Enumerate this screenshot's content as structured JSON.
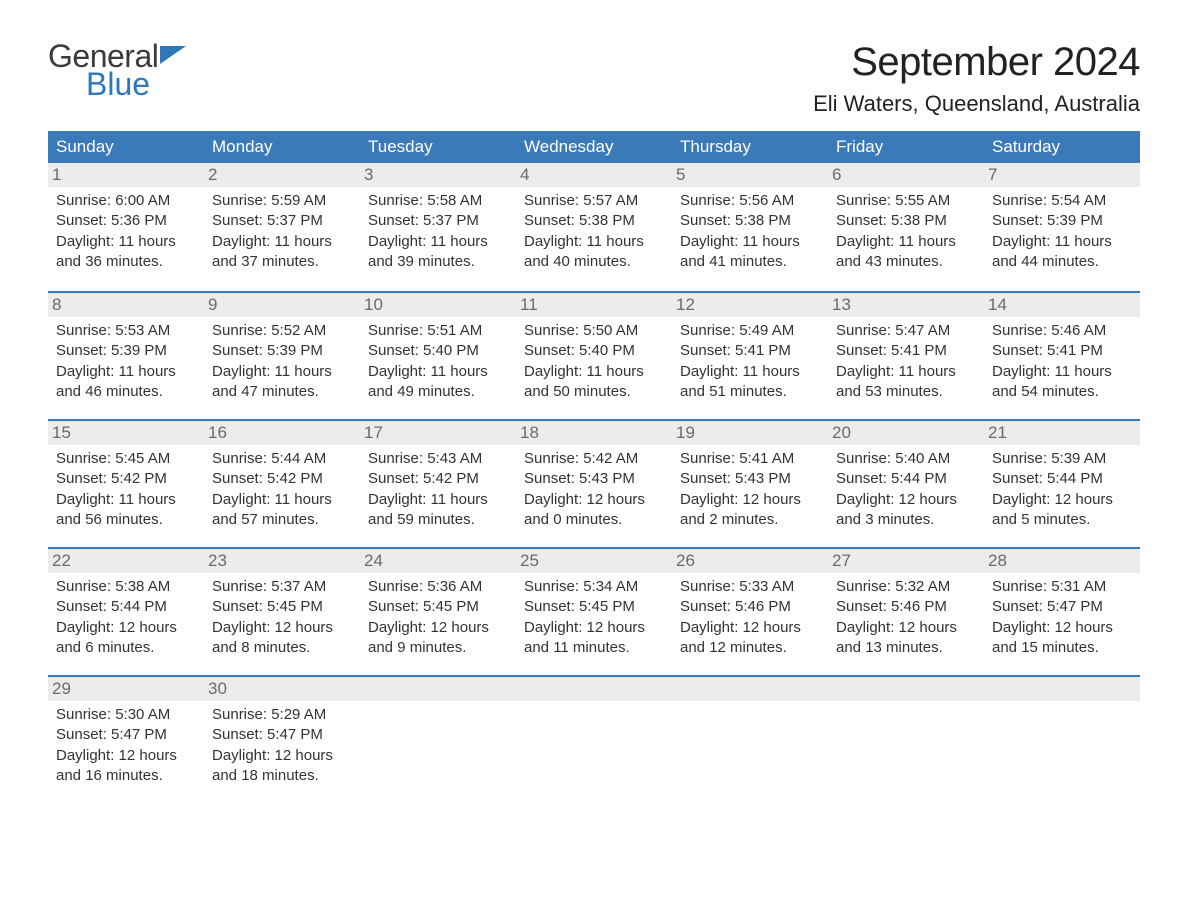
{
  "logo": {
    "part1": "General",
    "part2": "Blue"
  },
  "title": "September 2024",
  "location": "Eli Waters, Queensland, Australia",
  "colors": {
    "header_bg": "#3b7ab8",
    "header_text": "#ffffff",
    "daynum_bg": "#ececec",
    "daynum_text": "#6a6a6a",
    "body_text": "#333333",
    "border": "#3b7ab8",
    "logo_gray": "#3b3b3b",
    "logo_blue": "#2e77b8"
  },
  "weekdays": [
    "Sunday",
    "Monday",
    "Tuesday",
    "Wednesday",
    "Thursday",
    "Friday",
    "Saturday"
  ],
  "weeks": [
    [
      {
        "n": "1",
        "sr": "Sunrise: 6:00 AM",
        "ss": "Sunset: 5:36 PM",
        "d1": "Daylight: 11 hours",
        "d2": "and 36 minutes."
      },
      {
        "n": "2",
        "sr": "Sunrise: 5:59 AM",
        "ss": "Sunset: 5:37 PM",
        "d1": "Daylight: 11 hours",
        "d2": "and 37 minutes."
      },
      {
        "n": "3",
        "sr": "Sunrise: 5:58 AM",
        "ss": "Sunset: 5:37 PM",
        "d1": "Daylight: 11 hours",
        "d2": "and 39 minutes."
      },
      {
        "n": "4",
        "sr": "Sunrise: 5:57 AM",
        "ss": "Sunset: 5:38 PM",
        "d1": "Daylight: 11 hours",
        "d2": "and 40 minutes."
      },
      {
        "n": "5",
        "sr": "Sunrise: 5:56 AM",
        "ss": "Sunset: 5:38 PM",
        "d1": "Daylight: 11 hours",
        "d2": "and 41 minutes."
      },
      {
        "n": "6",
        "sr": "Sunrise: 5:55 AM",
        "ss": "Sunset: 5:38 PM",
        "d1": "Daylight: 11 hours",
        "d2": "and 43 minutes."
      },
      {
        "n": "7",
        "sr": "Sunrise: 5:54 AM",
        "ss": "Sunset: 5:39 PM",
        "d1": "Daylight: 11 hours",
        "d2": "and 44 minutes."
      }
    ],
    [
      {
        "n": "8",
        "sr": "Sunrise: 5:53 AM",
        "ss": "Sunset: 5:39 PM",
        "d1": "Daylight: 11 hours",
        "d2": "and 46 minutes."
      },
      {
        "n": "9",
        "sr": "Sunrise: 5:52 AM",
        "ss": "Sunset: 5:39 PM",
        "d1": "Daylight: 11 hours",
        "d2": "and 47 minutes."
      },
      {
        "n": "10",
        "sr": "Sunrise: 5:51 AM",
        "ss": "Sunset: 5:40 PM",
        "d1": "Daylight: 11 hours",
        "d2": "and 49 minutes."
      },
      {
        "n": "11",
        "sr": "Sunrise: 5:50 AM",
        "ss": "Sunset: 5:40 PM",
        "d1": "Daylight: 11 hours",
        "d2": "and 50 minutes."
      },
      {
        "n": "12",
        "sr": "Sunrise: 5:49 AM",
        "ss": "Sunset: 5:41 PM",
        "d1": "Daylight: 11 hours",
        "d2": "and 51 minutes."
      },
      {
        "n": "13",
        "sr": "Sunrise: 5:47 AM",
        "ss": "Sunset: 5:41 PM",
        "d1": "Daylight: 11 hours",
        "d2": "and 53 minutes."
      },
      {
        "n": "14",
        "sr": "Sunrise: 5:46 AM",
        "ss": "Sunset: 5:41 PM",
        "d1": "Daylight: 11 hours",
        "d2": "and 54 minutes."
      }
    ],
    [
      {
        "n": "15",
        "sr": "Sunrise: 5:45 AM",
        "ss": "Sunset: 5:42 PM",
        "d1": "Daylight: 11 hours",
        "d2": "and 56 minutes."
      },
      {
        "n": "16",
        "sr": "Sunrise: 5:44 AM",
        "ss": "Sunset: 5:42 PM",
        "d1": "Daylight: 11 hours",
        "d2": "and 57 minutes."
      },
      {
        "n": "17",
        "sr": "Sunrise: 5:43 AM",
        "ss": "Sunset: 5:42 PM",
        "d1": "Daylight: 11 hours",
        "d2": "and 59 minutes."
      },
      {
        "n": "18",
        "sr": "Sunrise: 5:42 AM",
        "ss": "Sunset: 5:43 PM",
        "d1": "Daylight: 12 hours",
        "d2": "and 0 minutes."
      },
      {
        "n": "19",
        "sr": "Sunrise: 5:41 AM",
        "ss": "Sunset: 5:43 PM",
        "d1": "Daylight: 12 hours",
        "d2": "and 2 minutes."
      },
      {
        "n": "20",
        "sr": "Sunrise: 5:40 AM",
        "ss": "Sunset: 5:44 PM",
        "d1": "Daylight: 12 hours",
        "d2": "and 3 minutes."
      },
      {
        "n": "21",
        "sr": "Sunrise: 5:39 AM",
        "ss": "Sunset: 5:44 PM",
        "d1": "Daylight: 12 hours",
        "d2": "and 5 minutes."
      }
    ],
    [
      {
        "n": "22",
        "sr": "Sunrise: 5:38 AM",
        "ss": "Sunset: 5:44 PM",
        "d1": "Daylight: 12 hours",
        "d2": "and 6 minutes."
      },
      {
        "n": "23",
        "sr": "Sunrise: 5:37 AM",
        "ss": "Sunset: 5:45 PM",
        "d1": "Daylight: 12 hours",
        "d2": "and 8 minutes."
      },
      {
        "n": "24",
        "sr": "Sunrise: 5:36 AM",
        "ss": "Sunset: 5:45 PM",
        "d1": "Daylight: 12 hours",
        "d2": "and 9 minutes."
      },
      {
        "n": "25",
        "sr": "Sunrise: 5:34 AM",
        "ss": "Sunset: 5:45 PM",
        "d1": "Daylight: 12 hours",
        "d2": "and 11 minutes."
      },
      {
        "n": "26",
        "sr": "Sunrise: 5:33 AM",
        "ss": "Sunset: 5:46 PM",
        "d1": "Daylight: 12 hours",
        "d2": "and 12 minutes."
      },
      {
        "n": "27",
        "sr": "Sunrise: 5:32 AM",
        "ss": "Sunset: 5:46 PM",
        "d1": "Daylight: 12 hours",
        "d2": "and 13 minutes."
      },
      {
        "n": "28",
        "sr": "Sunrise: 5:31 AM",
        "ss": "Sunset: 5:47 PM",
        "d1": "Daylight: 12 hours",
        "d2": "and 15 minutes."
      }
    ],
    [
      {
        "n": "29",
        "sr": "Sunrise: 5:30 AM",
        "ss": "Sunset: 5:47 PM",
        "d1": "Daylight: 12 hours",
        "d2": "and 16 minutes."
      },
      {
        "n": "30",
        "sr": "Sunrise: 5:29 AM",
        "ss": "Sunset: 5:47 PM",
        "d1": "Daylight: 12 hours",
        "d2": "and 18 minutes."
      },
      null,
      null,
      null,
      null,
      null
    ]
  ]
}
